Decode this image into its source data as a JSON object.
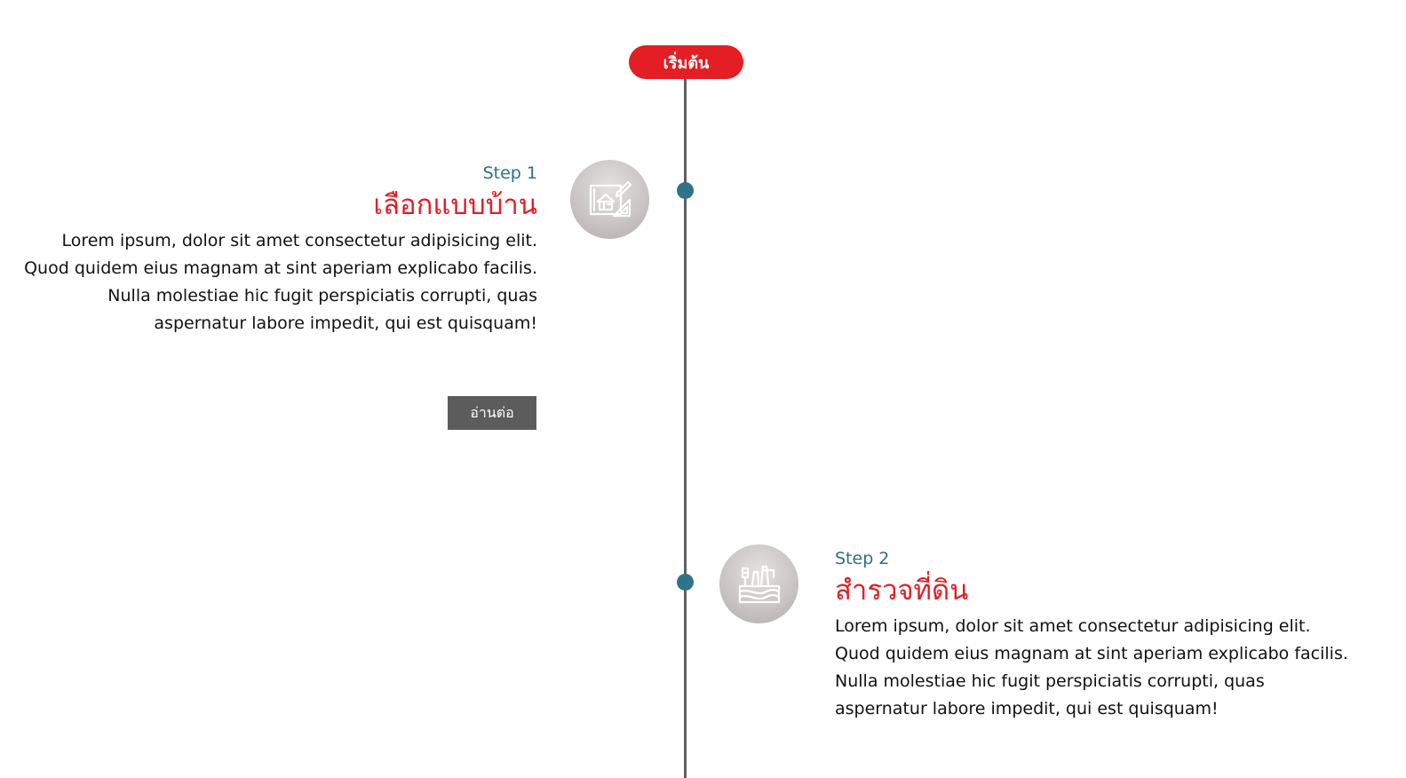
{
  "timeline": {
    "start_label": "เริ่มต้น",
    "accent_color": "#e31e24",
    "dot_color": "#2f7389",
    "line_color": "#5f6163"
  },
  "steps": [
    {
      "step_label": "Step 1",
      "title": "เลือกแบบบ้าน",
      "text": "Lorem ipsum, dolor sit amet consectetur adipisicing elit. Quod quidem eius magnam at sint aperiam explicabo facilis. Nulla molestiae hic fugit perspiciatis corrupti, quas aspernatur labore impedit, qui est quisquam!",
      "icon": "house-blueprint-icon",
      "button_label": "อ่านต่อ"
    },
    {
      "step_label": "Step 2",
      "title": "สำรวจที่ดิน",
      "text": "Lorem ipsum, dolor sit amet consectetur adipisicing elit. Quod quidem eius magnam at sint aperiam explicabo facilis. Nulla molestiae hic fugit perspiciatis corrupti, quas aspernatur labore impedit, qui est quisquam!",
      "icon": "land-survey-icon"
    }
  ]
}
